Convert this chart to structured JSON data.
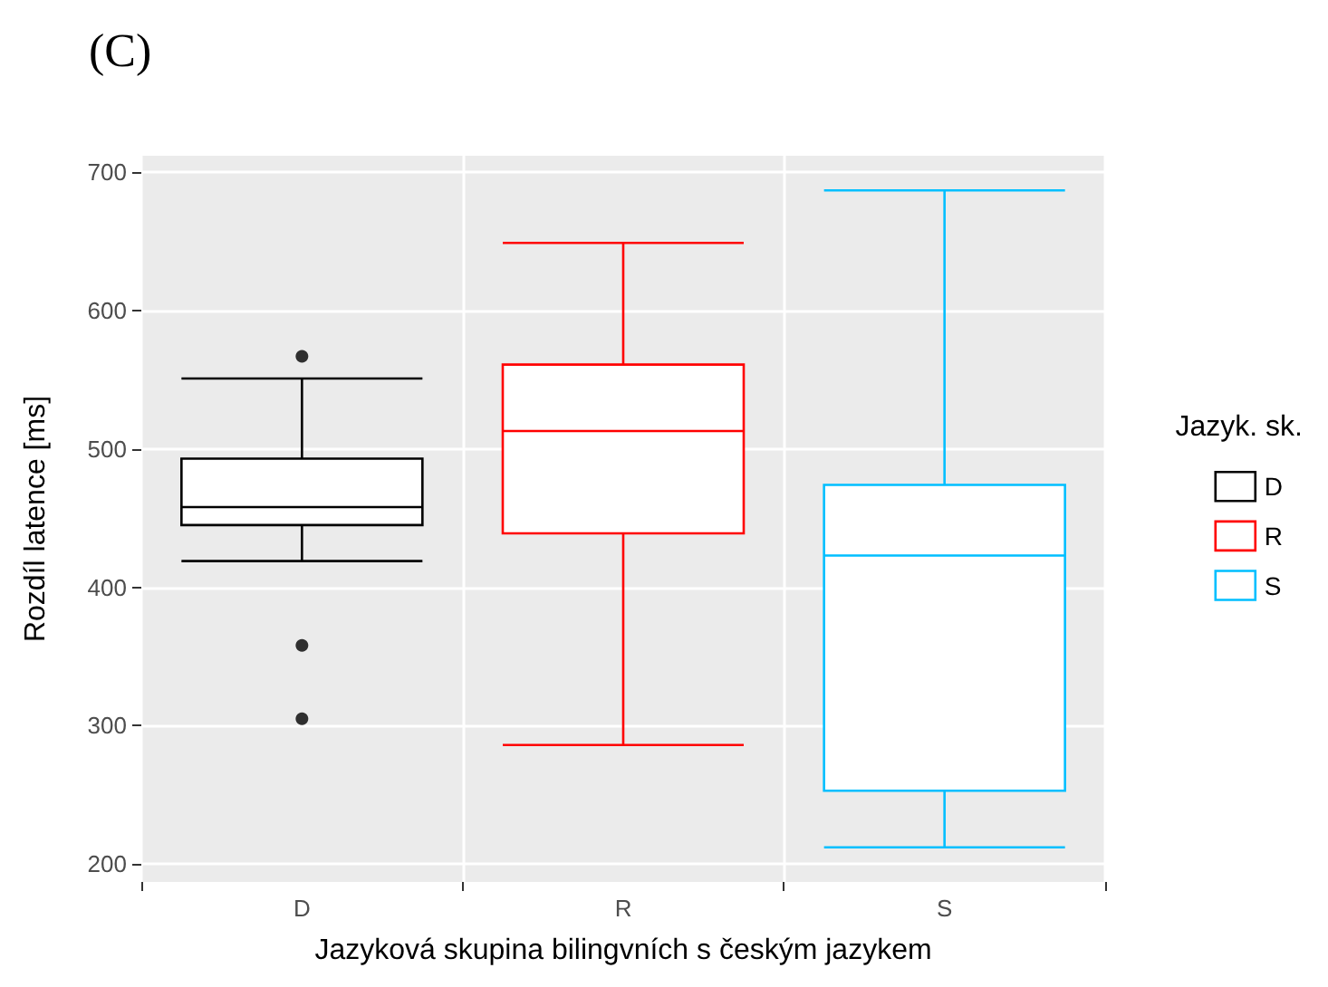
{
  "chart_data": {
    "type": "box",
    "title": "(C)",
    "xlabel": "Jazyková skupina bilingvních s českým jazykem",
    "ylabel": "Rozdíl latence [ms]",
    "legend_title": "Jazyk. sk.",
    "categories": [
      "D",
      "R",
      "S"
    ],
    "series": [
      {
        "name": "D",
        "color": "#000000",
        "boxes": [
          {
            "low": 419,
            "q1": 445,
            "median": 458,
            "q3": 493,
            "high": 551,
            "outliers": [
              567,
              358,
              305
            ]
          },
          null,
          null
        ]
      },
      {
        "name": "R",
        "color": "#ff0000",
        "boxes": [
          null,
          {
            "low": 286,
            "q1": 439,
            "median": 513,
            "q3": 561,
            "high": 649
          },
          null
        ]
      },
      {
        "name": "S",
        "color": "#00bfff",
        "boxes": [
          null,
          null,
          {
            "low": 212,
            "q1": 253,
            "median": 423,
            "q3": 474,
            "high": 687
          }
        ]
      }
    ],
    "ylim": [
      187,
      712
    ],
    "yticks": [
      200,
      300,
      400,
      500,
      600,
      700
    ],
    "grid": true,
    "legend": "right"
  }
}
